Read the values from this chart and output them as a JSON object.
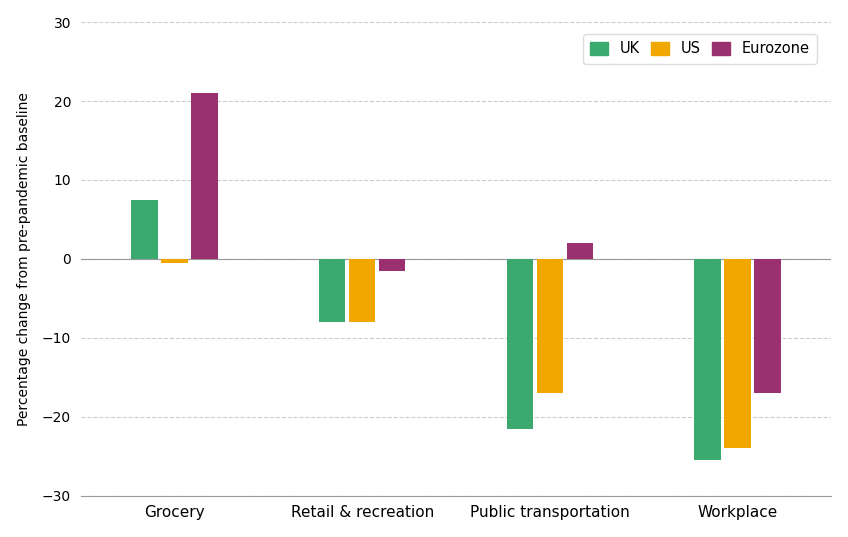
{
  "categories": [
    "Grocery",
    "Retail & recreation",
    "Public transportation",
    "Workplace"
  ],
  "series": {
    "UK": [
      7.5,
      -8.0,
      -21.5,
      -25.5
    ],
    "US": [
      -0.5,
      -8.0,
      -17.0,
      -24.0
    ],
    "Eurozone": [
      21.0,
      -1.5,
      2.0,
      -17.0
    ]
  },
  "colors": {
    "UK": "#3aaa6e",
    "US": "#f0a800",
    "Eurozone": "#9b3070"
  },
  "ylabel": "Percentage change from pre-pandemic baseline",
  "ylim": [
    -30,
    30
  ],
  "yticks": [
    -30,
    -20,
    -10,
    0,
    10,
    20,
    30
  ],
  "legend_labels": [
    "UK",
    "US",
    "Eurozone"
  ],
  "background_color": "#ffffff",
  "grid_color": "#aaaaaa"
}
